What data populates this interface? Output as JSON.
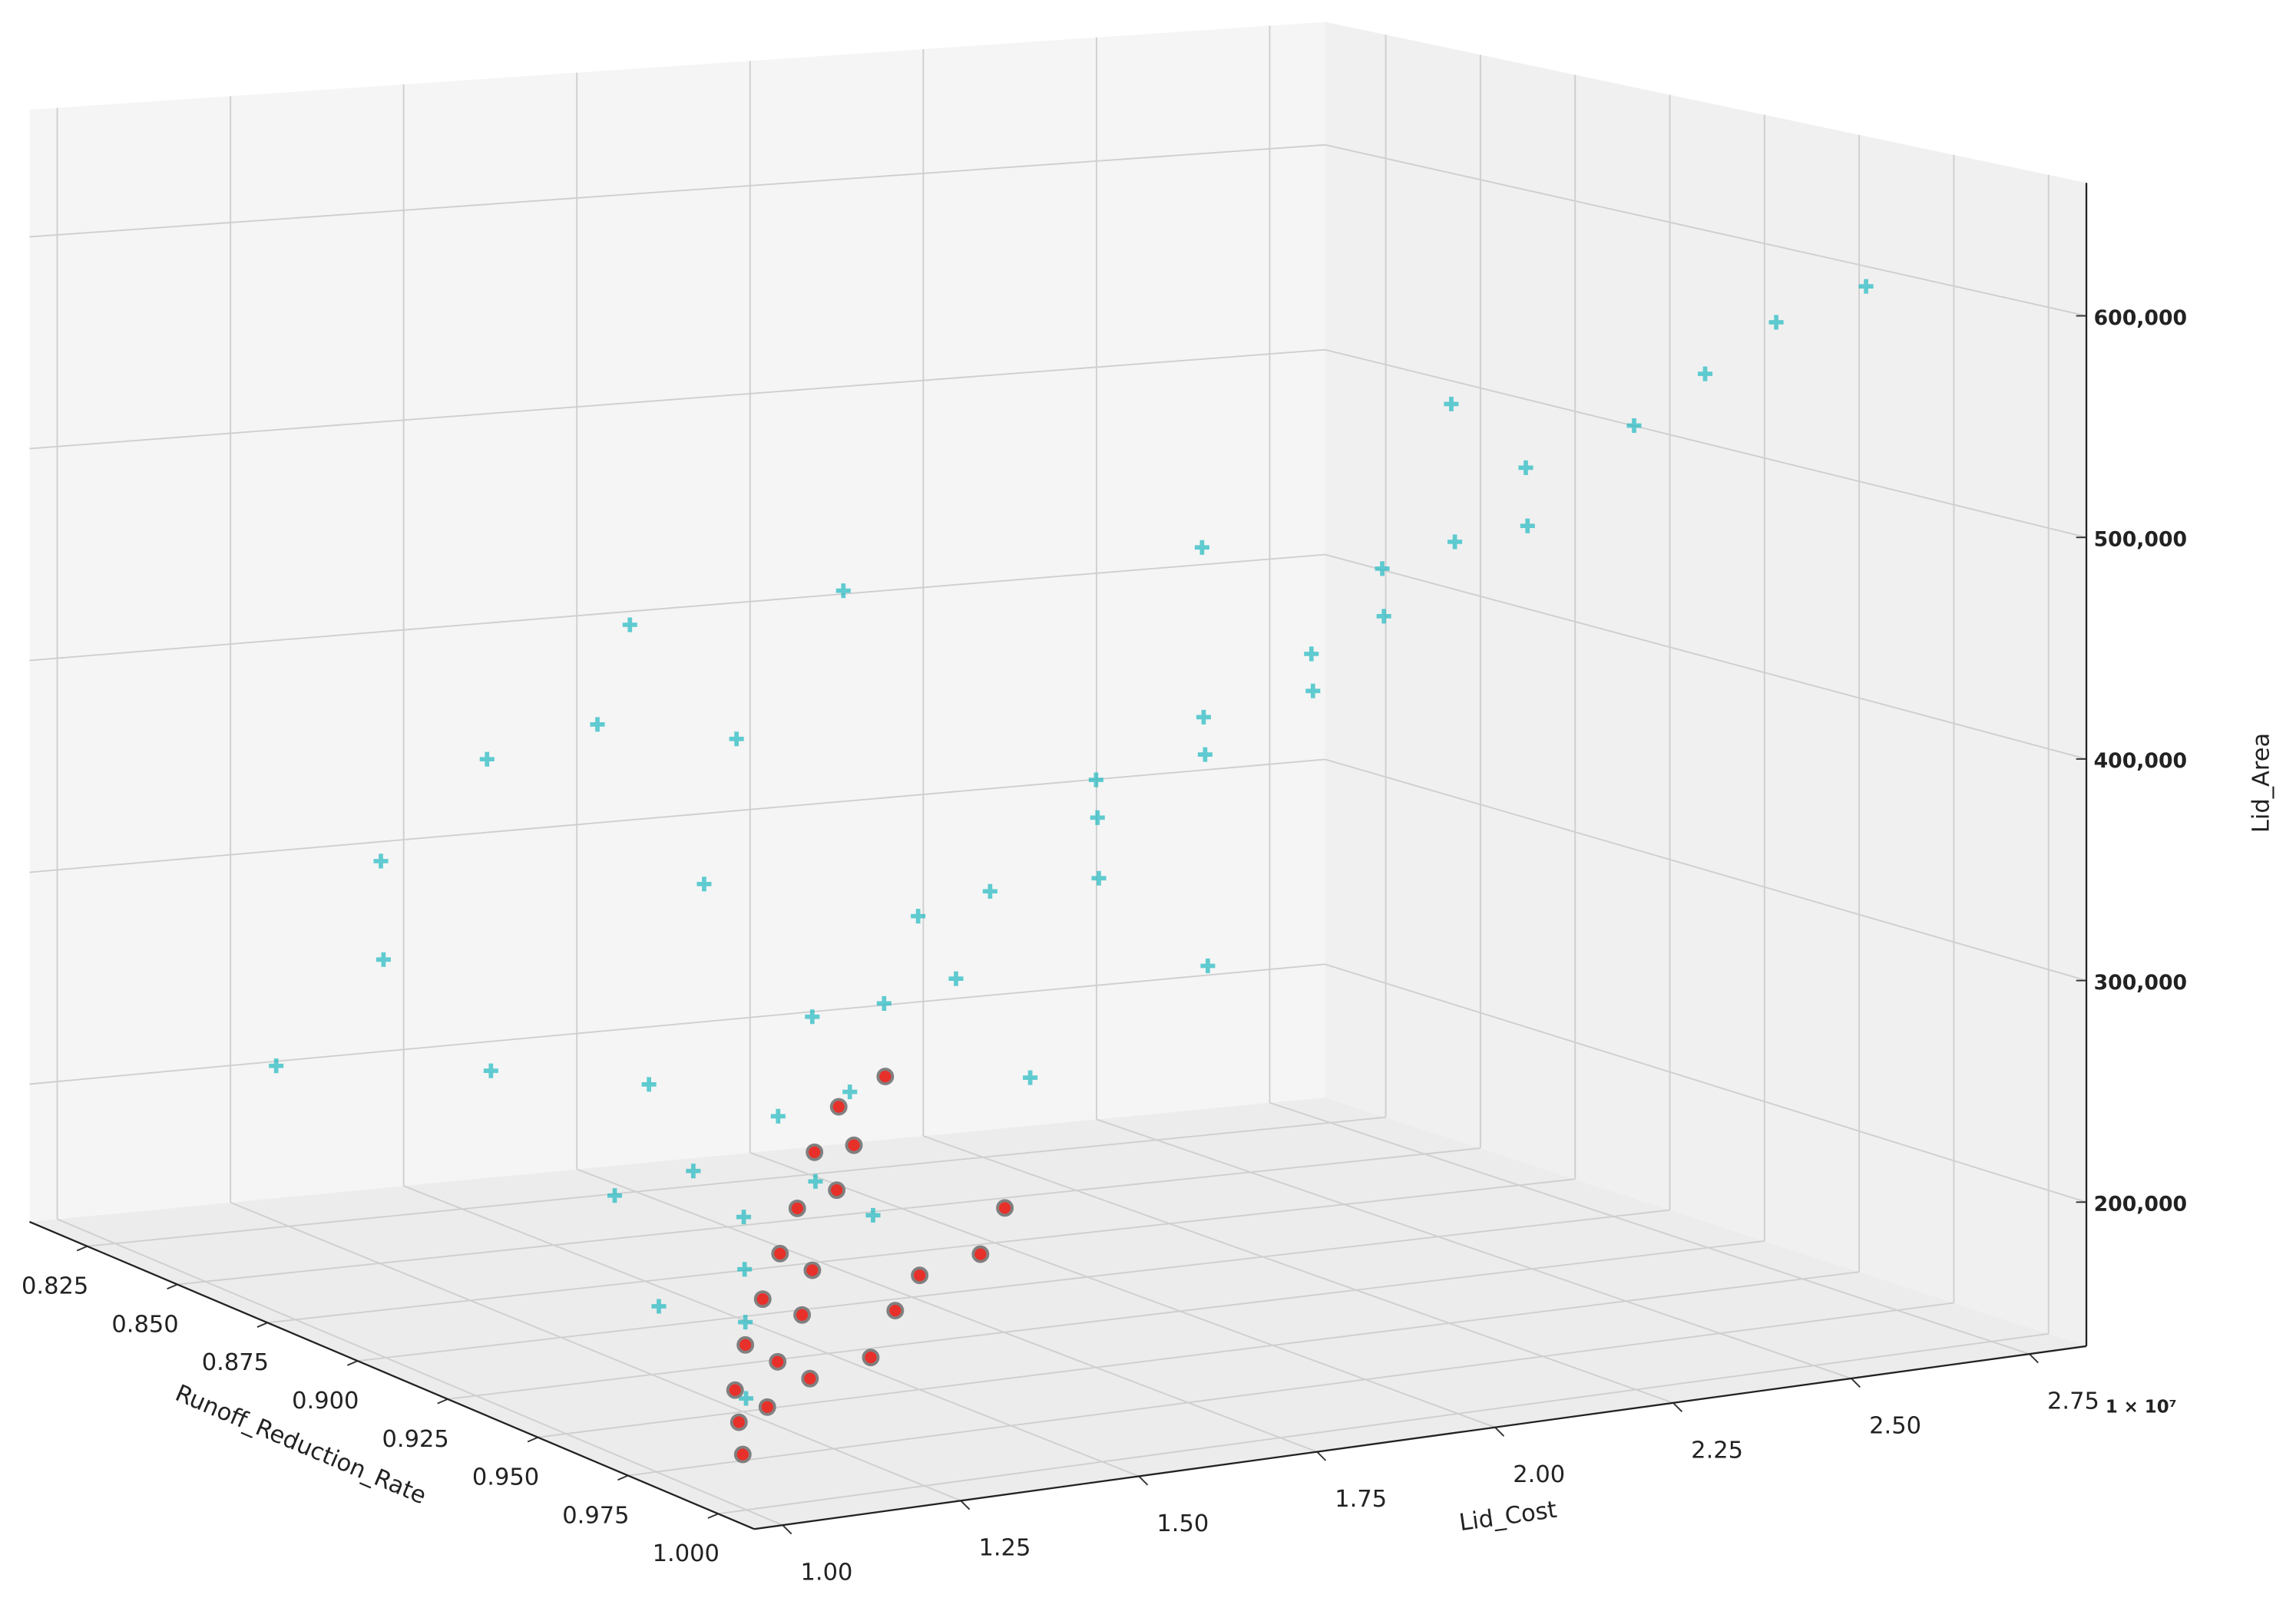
{
  "chart_data": {
    "type": "scatter3d",
    "x_label": "Lid_Cost",
    "y_label": "Runoff_Reduction_Rate",
    "z_label": "Lid_Area",
    "x_offset_label": "1 × 10⁷",
    "xlim": [
      0.96,
      2.83
    ],
    "ylim": [
      0.809,
      1.01
    ],
    "zlim": [
      135000,
      660000
    ],
    "xticks": [
      {
        "value": 1,
        "label": "1.00"
      },
      1.25,
      {
        "value": 1.5,
        "label": "1.50"
      },
      1.75,
      {
        "value": 2,
        "label": "2.00"
      },
      2.25,
      {
        "value": 2.5,
        "label": "2.50"
      },
      2.75
    ],
    "yticks": [
      0.825,
      {
        "value": 0.85,
        "label": "0.850"
      },
      0.875,
      {
        "value": 0.9,
        "label": "0.900"
      },
      0.925,
      {
        "value": 0.95,
        "label": "0.950"
      },
      0.975,
      {
        "value": 1,
        "label": "1.000"
      }
    ],
    "zticks": [
      {
        "value": 200000,
        "label": "200,000"
      },
      {
        "value": 300000,
        "label": "300,000"
      },
      {
        "value": 400000,
        "label": "400,000"
      },
      {
        "value": 500000,
        "label": "500,000"
      },
      {
        "value": 600000,
        "label": "600,000"
      }
    ],
    "grid": true,
    "series": [
      {
        "color": "#1fb9c0",
        "marker": "plus",
        "x": [
          1.05,
          1.1,
          1.15,
          1.2,
          1.25,
          1.3,
          1.35,
          1.4,
          1.45,
          1.5,
          1.55,
          1.6,
          1.65,
          1.7,
          1.75,
          1.8,
          1.85,
          1.9,
          1.95,
          2.0,
          2.05,
          2.1,
          2.15,
          2.2,
          2.3,
          2.4,
          2.5,
          2.6,
          1.1,
          1.2,
          1.3,
          1.15,
          1.25,
          1.4,
          1.05,
          1.35,
          1.5,
          1.6,
          1.12,
          1.18,
          1.22,
          1.28,
          1.08,
          1.45,
          1.7,
          1.9,
          2.2
        ],
        "y": [
          0.99,
          0.98,
          0.97,
          0.96,
          0.97,
          0.95,
          0.96,
          0.94,
          0.95,
          0.96,
          0.94,
          0.95,
          0.97,
          0.96,
          0.95,
          0.97,
          0.96,
          0.98,
          0.97,
          0.98,
          0.97,
          0.98,
          0.99,
          0.98,
          0.99,
          0.99,
          0.99,
          0.995,
          0.88,
          0.86,
          0.87,
          0.9,
          0.91,
          0.89,
          0.86,
          0.92,
          0.9,
          0.91,
          0.94,
          0.95,
          0.93,
          0.98,
          0.96,
          0.99,
          0.99,
          0.95,
          0.96
        ],
        "z": [
          175000,
          200000,
          215000,
          230000,
          250000,
          265000,
          280000,
          300000,
          310000,
          325000,
          340000,
          355000,
          370000,
          390000,
          400000,
          420000,
          430000,
          450000,
          460000,
          480000,
          495000,
          510000,
          520000,
          540000,
          560000,
          580000,
          600000,
          615000,
          300000,
          330000,
          380000,
          260000,
          420000,
          450000,
          240000,
          350000,
          400000,
          470000,
          230000,
          245000,
          270000,
          240000,
          195000,
          300000,
          340000,
          500000,
          560000
        ]
      },
      {
        "color": "#e8302a",
        "edgecolor": "#808080",
        "marker": "circle",
        "x": [
          1.02,
          1.04,
          1.06,
          1.08,
          1.1,
          1.12,
          1.15,
          1.18,
          1.2,
          1.22,
          1.25,
          1.28,
          1.3,
          1.33,
          1.36,
          1.4,
          1.14,
          1.2,
          1.26,
          1.32,
          1.38,
          1.44
        ],
        "y": [
          0.995,
          0.99,
          0.985,
          0.99,
          0.98,
          0.985,
          0.975,
          0.98,
          0.97,
          0.975,
          0.965,
          0.97,
          0.96,
          0.965,
          0.955,
          0.96,
          0.99,
          0.995,
          0.99,
          0.985,
          0.99,
          0.985
        ],
        "z": [
          155000,
          165000,
          175000,
          170000,
          190000,
          185000,
          205000,
          200000,
          220000,
          215000,
          235000,
          245000,
          255000,
          260000,
          270000,
          285000,
          180000,
          190000,
          205000,
          215000,
          225000,
          240000
        ]
      }
    ]
  }
}
